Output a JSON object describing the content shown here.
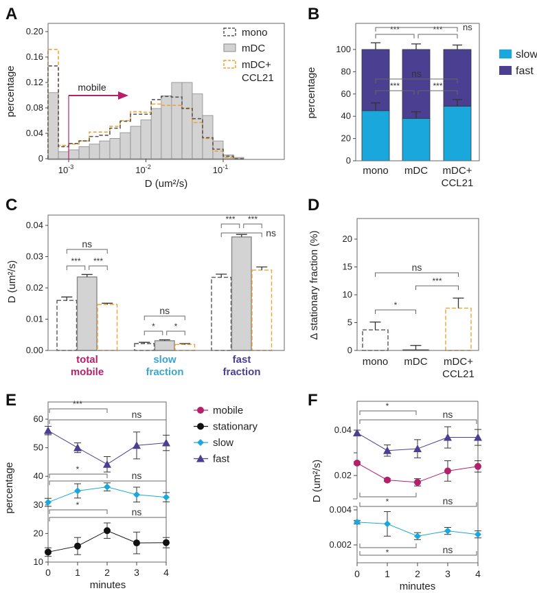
{
  "panel_labels": [
    "A",
    "B",
    "C",
    "D",
    "E",
    "F"
  ],
  "colors": {
    "mono": "#555555",
    "mDC_fill": "#d3d3d3",
    "mDC_stroke": "#888888",
    "ccl21": "#f0a232",
    "mobile": "#b5206a",
    "stationary": "#111111",
    "slow": "#1aa7dc",
    "fast": "#4b3f91"
  },
  "chart_data": [
    {
      "panel": "A",
      "type": "bar",
      "subtype": "histogram",
      "xlabel": "D (um²/s)",
      "ylabel": "percentage",
      "xscale": "log",
      "ylim": [
        0,
        0.21
      ],
      "yticks": [
        {
          "value": 0,
          "label": "0"
        },
        {
          "value": 0.04,
          "label": "0.04"
        },
        {
          "value": 0.08,
          "label": "0.08"
        },
        {
          "value": 0.12,
          "label": "0.12"
        },
        {
          "value": 0.16,
          "label": "0.16"
        },
        {
          "value": 0.2,
          "label": "0.20"
        }
      ],
      "xticks": [
        {
          "value": 0.001,
          "base": "10",
          "exp": "-3"
        },
        {
          "value": 0.01,
          "base": "10",
          "exp": "-2"
        },
        {
          "value": 0.1,
          "base": "10",
          "exp": "-1"
        }
      ],
      "bin_edges": [
        0.00054,
        0.000736,
        0.001,
        0.00136,
        0.00185,
        0.00251,
        0.00341,
        0.00464,
        0.00631,
        0.00858,
        0.0117,
        0.0158,
        0.0215,
        0.0293,
        0.0398,
        0.0541,
        0.0736,
        0.1,
        0.136,
        0.185
      ],
      "series": [
        {
          "name": "mono",
          "style": "dashed",
          "values": [
            0.146,
            0.019,
            0.024,
            0.028,
            0.035,
            0.037,
            0.048,
            0.059,
            0.07,
            0.07,
            0.093,
            0.098,
            0.097,
            0.079,
            0.063,
            0.033,
            0.015,
            0.004,
            0
          ]
        },
        {
          "name": "mDC",
          "style": "filled",
          "values": [
            0.104,
            0.011,
            0.014,
            0.019,
            0.023,
            0.028,
            0.032,
            0.041,
            0.051,
            0.061,
            0.079,
            0.099,
            0.12,
            0.12,
            0.102,
            0.068,
            0.028,
            0.006,
            0.002
          ]
        },
        {
          "name": "mDC+",
          "name_line2": "CCL21",
          "style": "dashed",
          "values": [
            0.172,
            0.021,
            0.023,
            0.028,
            0.042,
            0.042,
            0.051,
            0.06,
            0.074,
            0.073,
            0.086,
            0.084,
            0.084,
            0.08,
            0.057,
            0.032,
            0.012,
            0.002,
            0
          ]
        }
      ],
      "annotation": {
        "text": "mobile",
        "x": 0.001,
        "direction": "right"
      },
      "legend": "top-right",
      "grid": false
    },
    {
      "panel": "B",
      "type": "bar",
      "subtype": "stacked",
      "ylabel": "percentage",
      "ylim": [
        0,
        123
      ],
      "yticks": [
        {
          "value": 0,
          "label": "0"
        },
        {
          "value": 20,
          "label": "20"
        },
        {
          "value": 40,
          "label": "40"
        },
        {
          "value": 60,
          "label": "60"
        },
        {
          "value": 80,
          "label": "80"
        },
        {
          "value": 100,
          "label": "100"
        }
      ],
      "categories": [
        [
          "mono"
        ],
        [
          "mDC"
        ],
        [
          "mDC+",
          "CCL21"
        ]
      ],
      "series": [
        {
          "name": "slow",
          "values": [
            45,
            38,
            49
          ],
          "errors": [
            7,
            6,
            6
          ]
        },
        {
          "name": "fast",
          "values": [
            55,
            62,
            51
          ],
          "errors": [
            6,
            5,
            4
          ]
        }
      ],
      "comparisons": [
        {
          "from": 0,
          "to": 1,
          "label": "***"
        },
        {
          "from": 1,
          "to": 2,
          "label": "***"
        },
        {
          "from": 0,
          "to": 2,
          "label": "ns"
        },
        {
          "from": 0,
          "to": 1,
          "label": "***"
        },
        {
          "from": 1,
          "to": 2,
          "label": "***"
        },
        {
          "from": 0,
          "to": 2,
          "label": "ns"
        }
      ],
      "legend": "right",
      "grid": false
    },
    {
      "panel": "C",
      "type": "bar",
      "subtype": "grouped",
      "ylabel": "D (um²/s)",
      "ylim": [
        0,
        0.0433
      ],
      "yticks": [
        {
          "value": 0,
          "label": "0.00"
        },
        {
          "value": 0.01,
          "label": "0.01"
        },
        {
          "value": 0.02,
          "label": "0.02"
        },
        {
          "value": 0.03,
          "label": "0.03"
        },
        {
          "value": 0.04,
          "label": "0.04"
        }
      ],
      "categories": [
        {
          "lines": [
            "total",
            "mobile"
          ],
          "color": "#b5206a"
        },
        {
          "lines": [
            "slow",
            "fraction"
          ],
          "color": "#3aa6d0"
        },
        {
          "lines": [
            "fast",
            "fraction"
          ],
          "color": "#4b3f91"
        }
      ],
      "series": [
        {
          "name": "mono",
          "values": [
            0.016,
            0.0022,
            0.0234
          ],
          "errors": [
            0.0011,
            0.0004,
            0.001
          ]
        },
        {
          "name": "mDC",
          "values": [
            0.0235,
            0.0031,
            0.0363
          ],
          "errors": [
            0.0008,
            0.0003,
            0.0008
          ]
        },
        {
          "name": "mDC+CCL21",
          "values": [
            0.0147,
            0.0019,
            0.0257
          ],
          "errors": [
            0.0004,
            0.0003,
            0.001
          ]
        }
      ],
      "comparisons": [
        [
          {
            "from": 0,
            "to": 1,
            "label": "***"
          },
          {
            "from": 1,
            "to": 2,
            "label": "***"
          },
          {
            "from": 0,
            "to": 2,
            "label": "ns"
          }
        ],
        [
          {
            "from": 0,
            "to": 1,
            "label": "*"
          },
          {
            "from": 1,
            "to": 2,
            "label": "*"
          },
          {
            "from": 0,
            "to": 2,
            "label": "ns"
          }
        ],
        [
          {
            "from": 0,
            "to": 1,
            "label": "***"
          },
          {
            "from": 1,
            "to": 2,
            "label": "***"
          },
          {
            "from": 0,
            "to": 2,
            "label": "ns"
          }
        ]
      ],
      "grid": false
    },
    {
      "panel": "D",
      "type": "bar",
      "ylabel": "Δ stationary fraction (%)",
      "ylim": [
        0,
        23.7
      ],
      "yticks": [
        {
          "value": 0,
          "label": "0"
        },
        {
          "value": 5,
          "label": "5"
        },
        {
          "value": 10,
          "label": "10"
        },
        {
          "value": 15,
          "label": "15"
        },
        {
          "value": 20,
          "label": "20"
        }
      ],
      "categories": [
        [
          "mono"
        ],
        [
          "mDC"
        ],
        [
          "mDC+",
          "CCL21"
        ]
      ],
      "values": [
        3.7,
        0.1,
        7.6
      ],
      "errors": [
        1.4,
        0.8,
        1.8
      ],
      "comparisons": [
        {
          "from": 0,
          "to": 1,
          "label": "*"
        },
        {
          "from": 1,
          "to": 2,
          "label": "***"
        },
        {
          "from": 0,
          "to": 2,
          "label": "ns"
        }
      ],
      "grid": false
    },
    {
      "panel": "E",
      "type": "line",
      "xlabel": "minutes",
      "ylabel": "percentage",
      "x": [
        0,
        1,
        2,
        3,
        4
      ],
      "ylim": [
        10,
        66
      ],
      "yticks": [
        {
          "value": 10,
          "label": "10"
        },
        {
          "value": 20,
          "label": "20"
        },
        {
          "value": 30,
          "label": "30"
        },
        {
          "value": 40,
          "label": "40"
        },
        {
          "value": 50,
          "label": "50"
        },
        {
          "value": 60,
          "label": "60"
        }
      ],
      "xticks": [
        {
          "value": 0,
          "label": "0"
        },
        {
          "value": 1,
          "label": "1"
        },
        {
          "value": 2,
          "label": "2"
        },
        {
          "value": 3,
          "label": "3"
        },
        {
          "value": 4,
          "label": "4"
        }
      ],
      "series": [
        {
          "name": "fast",
          "marker": "triangle",
          "values": [
            56.0,
            50.0,
            44.2,
            50.8,
            51.7
          ],
          "errors": [
            1.5,
            1.7,
            2.7,
            4.7,
            2.7
          ]
        },
        {
          "name": "slow",
          "marker": "diamond",
          "values": [
            30.9,
            34.9,
            36.3,
            33.6,
            32.7
          ],
          "errors": [
            1.4,
            2.5,
            1.4,
            2.6,
            1.6
          ]
        },
        {
          "name": "stationary",
          "marker": "circle",
          "values": [
            13.5,
            15.6,
            21.0,
            16.7,
            16.8
          ],
          "errors": [
            1.5,
            3.0,
            2.7,
            3.8,
            1.8
          ]
        }
      ],
      "comparisons": [
        {
          "from": 0,
          "to": 2,
          "label": "***"
        },
        {
          "from": 0,
          "to": 4,
          "label": "ns"
        },
        {
          "from": 0,
          "to": 2,
          "label": "*"
        },
        {
          "from": 0,
          "to": 4,
          "label": "ns"
        },
        {
          "from": 0,
          "to": 2,
          "label": "*"
        },
        {
          "from": 0,
          "to": 4,
          "label": "ns"
        }
      ],
      "legend": {
        "placement": "right",
        "items": [
          {
            "name": "mobile",
            "marker": "circle",
            "color": "#b5206a"
          },
          {
            "name": "stationary",
            "marker": "circle",
            "color": "#111111"
          },
          {
            "name": "slow",
            "marker": "diamond",
            "color": "#1aa7dc"
          },
          {
            "name": "fast",
            "marker": "triangle",
            "color": "#4b3f91"
          }
        ]
      },
      "grid": false
    },
    {
      "panel": "F",
      "type": "line",
      "xlabel": "minutes",
      "ylabel": "D (um²/s)",
      "x": [
        0,
        1,
        2,
        3,
        4
      ],
      "axis_break": true,
      "ylim_upper": [
        0.01,
        0.053
      ],
      "ylim_lower": [
        0.001,
        0.0044
      ],
      "yticks_upper": [
        {
          "value": 0.02,
          "label": "0.02"
        },
        {
          "value": 0.03,
          "label": ""
        },
        {
          "value": 0.04,
          "label": "0.04"
        }
      ],
      "yticks_lower": [
        {
          "value": 0.002,
          "label": "0.002"
        },
        {
          "value": 0.004,
          "label": "0.004"
        }
      ],
      "xticks": [
        {
          "value": 0,
          "label": "0"
        },
        {
          "value": 1,
          "label": "1"
        },
        {
          "value": 2,
          "label": "2"
        },
        {
          "value": 3,
          "label": "3"
        },
        {
          "value": 4,
          "label": "4"
        }
      ],
      "series": [
        {
          "name": "fast",
          "marker": "triangle",
          "segment": "upper",
          "values": [
            0.0388,
            0.031,
            0.0318,
            0.0368,
            0.0368
          ],
          "errors": [
            0.0012,
            0.0025,
            0.004,
            0.0047,
            0.0035
          ]
        },
        {
          "name": "mobile",
          "marker": "circle",
          "segment": "upper",
          "values": [
            0.0255,
            0.018,
            0.017,
            0.022,
            0.024
          ],
          "errors": [
            0.0006,
            0.0006,
            0.0016,
            0.0045,
            0.0025
          ]
        },
        {
          "name": "slow",
          "marker": "diamond",
          "segment": "lower",
          "values": [
            0.0033,
            0.0032,
            0.0025,
            0.0028,
            0.0026
          ],
          "errors": [
            0.0001,
            0.0007,
            0.0002,
            0.0002,
            0.0002
          ]
        }
      ],
      "comparisons": [
        {
          "from": 0,
          "to": 2,
          "label": "*"
        },
        {
          "from": 0,
          "to": 4,
          "label": "ns"
        },
        {
          "from": 0,
          "to": 2,
          "label": "*"
        },
        {
          "from": 0,
          "to": 4,
          "label": "ns"
        },
        {
          "from": 0,
          "to": 2,
          "label": "*"
        },
        {
          "from": 0,
          "to": 4,
          "label": "ns"
        }
      ],
      "grid": false
    }
  ]
}
